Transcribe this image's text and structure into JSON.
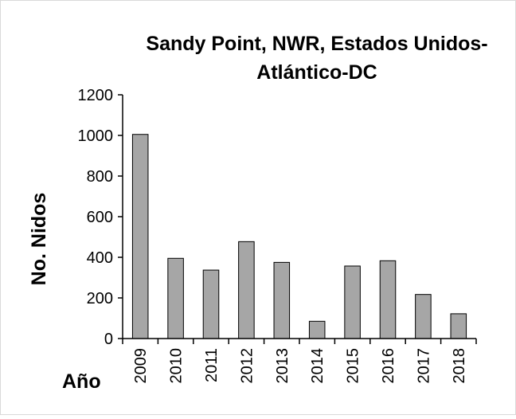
{
  "chart_data": {
    "type": "bar",
    "title_lines": [
      "Sandy Point, NWR, Estados Unidos-",
      "Atlántico-DC"
    ],
    "xlabel": "Año",
    "ylabel": "No. Nidos",
    "categories": [
      "2009",
      "2010",
      "2011",
      "2012",
      "2013",
      "2014",
      "2015",
      "2016",
      "2017",
      "2018"
    ],
    "values": [
      1005,
      395,
      337,
      477,
      375,
      85,
      357,
      383,
      217,
      122
    ],
    "yticks": [
      "0",
      "200",
      "400",
      "600",
      "800",
      "1000",
      "1200"
    ],
    "ylim": [
      0,
      1200
    ],
    "grid": false,
    "legend": "none",
    "colors": {
      "bar_fill": "#a6a6a6",
      "bar_stroke": "#000000",
      "axis": "#000000",
      "border": "#d9d9d9"
    }
  }
}
